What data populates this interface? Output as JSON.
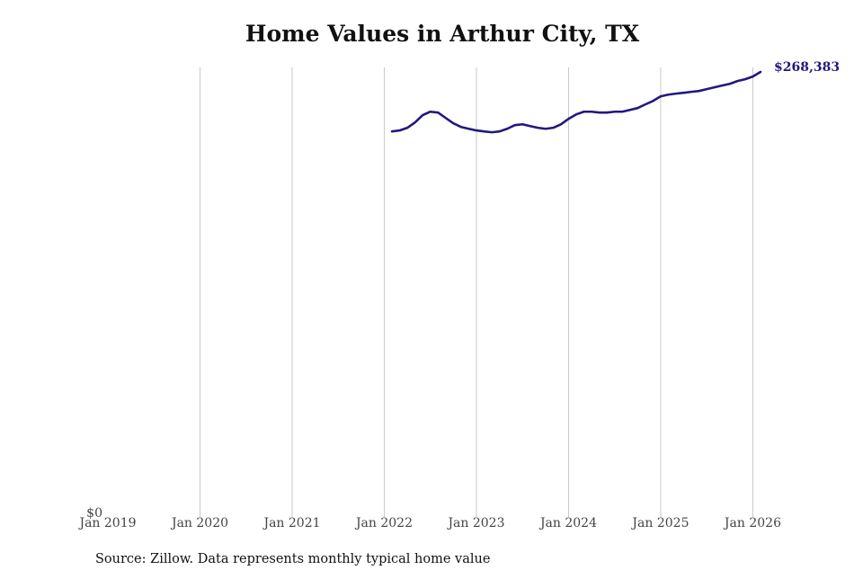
{
  "chart_data": {
    "type": "line",
    "title": "Home Values in Arthur City, TX",
    "source": "Source: Zillow. Data represents monthly typical home value",
    "x": [
      "2022-02",
      "2022-03",
      "2022-04",
      "2022-05",
      "2022-06",
      "2022-07",
      "2022-08",
      "2022-09",
      "2022-10",
      "2022-11",
      "2022-12",
      "2023-01",
      "2023-02",
      "2023-03",
      "2023-04",
      "2023-05",
      "2023-06",
      "2023-07",
      "2023-08",
      "2023-09",
      "2023-10",
      "2023-11",
      "2023-12",
      "2024-01",
      "2024-02",
      "2024-03",
      "2024-04",
      "2024-05",
      "2024-06",
      "2024-07",
      "2024-08",
      "2024-09",
      "2024-10",
      "2024-11",
      "2024-12",
      "2025-01",
      "2025-02",
      "2025-03",
      "2025-04",
      "2025-05",
      "2025-06",
      "2025-07",
      "2025-08",
      "2025-09",
      "2025-10",
      "2025-11",
      "2025-12",
      "2026-01",
      "2026-02"
    ],
    "series": [
      {
        "name": "Home value",
        "color": "#22187e",
        "values": [
          232500,
          233100,
          234700,
          237900,
          242300,
          244400,
          243900,
          240600,
          237400,
          235200,
          234100,
          233100,
          232500,
          232000,
          232500,
          234100,
          236300,
          236800,
          235700,
          234700,
          234100,
          234700,
          236800,
          240100,
          242800,
          244400,
          244400,
          243900,
          243900,
          244400,
          244400,
          245500,
          246600,
          248800,
          250900,
          253700,
          254700,
          255300,
          255800,
          256400,
          256900,
          258000,
          259100,
          260200,
          261200,
          262900,
          264000,
          265600,
          268383
        ],
        "value_labels": [
          null,
          null,
          null,
          null,
          null,
          null,
          null,
          null,
          null,
          null,
          null,
          null,
          null,
          null,
          null,
          null,
          null,
          null,
          null,
          null,
          null,
          null,
          null,
          null,
          null,
          null,
          null,
          null,
          null,
          null,
          null,
          null,
          null,
          null,
          null,
          null,
          null,
          null,
          null,
          null,
          null,
          null,
          null,
          null,
          null,
          null,
          null,
          null,
          "$268,383"
        ]
      }
    ],
    "xlim": [
      "2019-01",
      "2026-02"
    ],
    "xticks": [
      {
        "value": "2019-01",
        "label": "Jan 2019"
      },
      {
        "value": "2020-01",
        "label": "Jan 2020"
      },
      {
        "value": "2021-01",
        "label": "Jan 2021"
      },
      {
        "value": "2022-01",
        "label": "Jan 2022"
      },
      {
        "value": "2023-01",
        "label": "Jan 2023"
      },
      {
        "value": "2024-01",
        "label": "Jan 2024"
      },
      {
        "value": "2025-01",
        "label": "Jan 2025"
      },
      {
        "value": "2026-01",
        "label": "Jan 2026"
      }
    ],
    "ylim": [
      0,
      271100
    ],
    "yticks": [
      {
        "value": 0,
        "label": "$0"
      }
    ],
    "grid": true
  }
}
